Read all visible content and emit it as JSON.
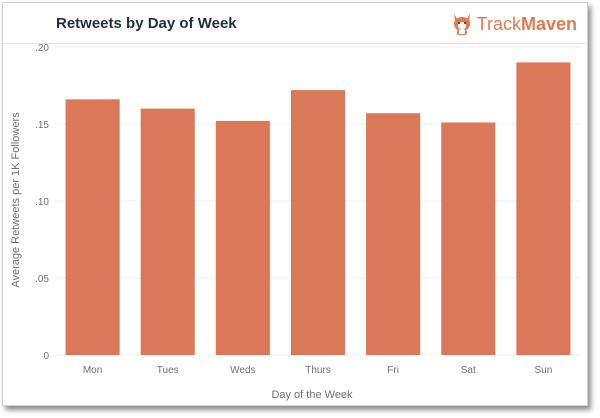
{
  "header": {
    "title": "Retweets by Day of Week",
    "logo_text_part1": "Track",
    "logo_text_part2": "Maven",
    "logo_icon": "corgi-dog-icon"
  },
  "colors": {
    "bar": "#db7858",
    "brand": "#e07a54",
    "grid": "#ededed",
    "title": "#1d3040",
    "tick": "#6f6f6f"
  },
  "chart_data": {
    "type": "bar",
    "title": "Retweets by Day of Week",
    "xlabel": "Day of the Week",
    "ylabel": "Average Retweets per 1K Followers",
    "categories": [
      "Mon",
      "Tues",
      "Weds",
      "Thurs",
      "Fri",
      "Sat",
      "Sun"
    ],
    "values": [
      0.166,
      0.16,
      0.152,
      0.172,
      0.157,
      0.151,
      0.19
    ],
    "ylim": [
      0,
      0.2
    ],
    "yticks": [
      0,
      0.05,
      0.1,
      0.15,
      0.2
    ],
    "ytick_labels": [
      "0",
      ".05",
      ".10",
      ".15",
      ".20"
    ],
    "grid": true,
    "legend": "none"
  }
}
